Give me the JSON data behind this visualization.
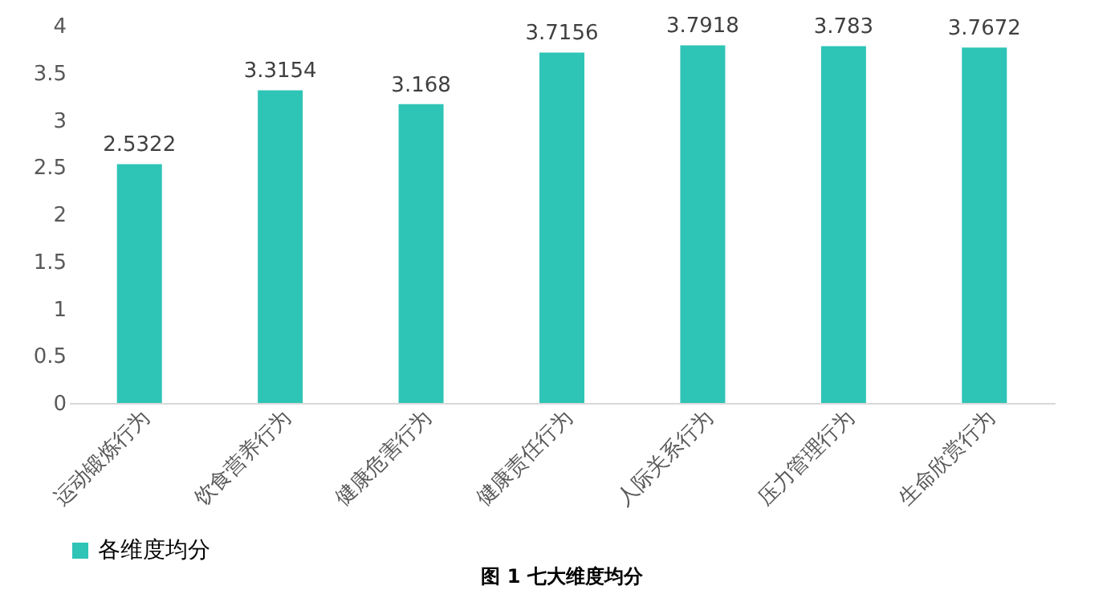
{
  "chart_data": {
    "type": "bar",
    "title": "图 1 七大维度均分",
    "categories": [
      "运动锻炼行为",
      "饮食营养行为",
      "健康危害行为",
      "健康责任行为",
      "人际关系行为",
      "压力管理行为",
      "生命欣赏行为"
    ],
    "series": [
      {
        "name": "各维度均分",
        "color": "#2ec4b6",
        "values": [
          2.5322,
          3.3154,
          3.168,
          3.7156,
          3.7918,
          3.783,
          3.7672
        ]
      }
    ],
    "ylim": [
      0,
      4
    ],
    "yticks": [
      0,
      0.5,
      1,
      1.5,
      2,
      2.5,
      3,
      3.5,
      4
    ],
    "data_labels": true,
    "grid": false,
    "legend": "bottom"
  }
}
